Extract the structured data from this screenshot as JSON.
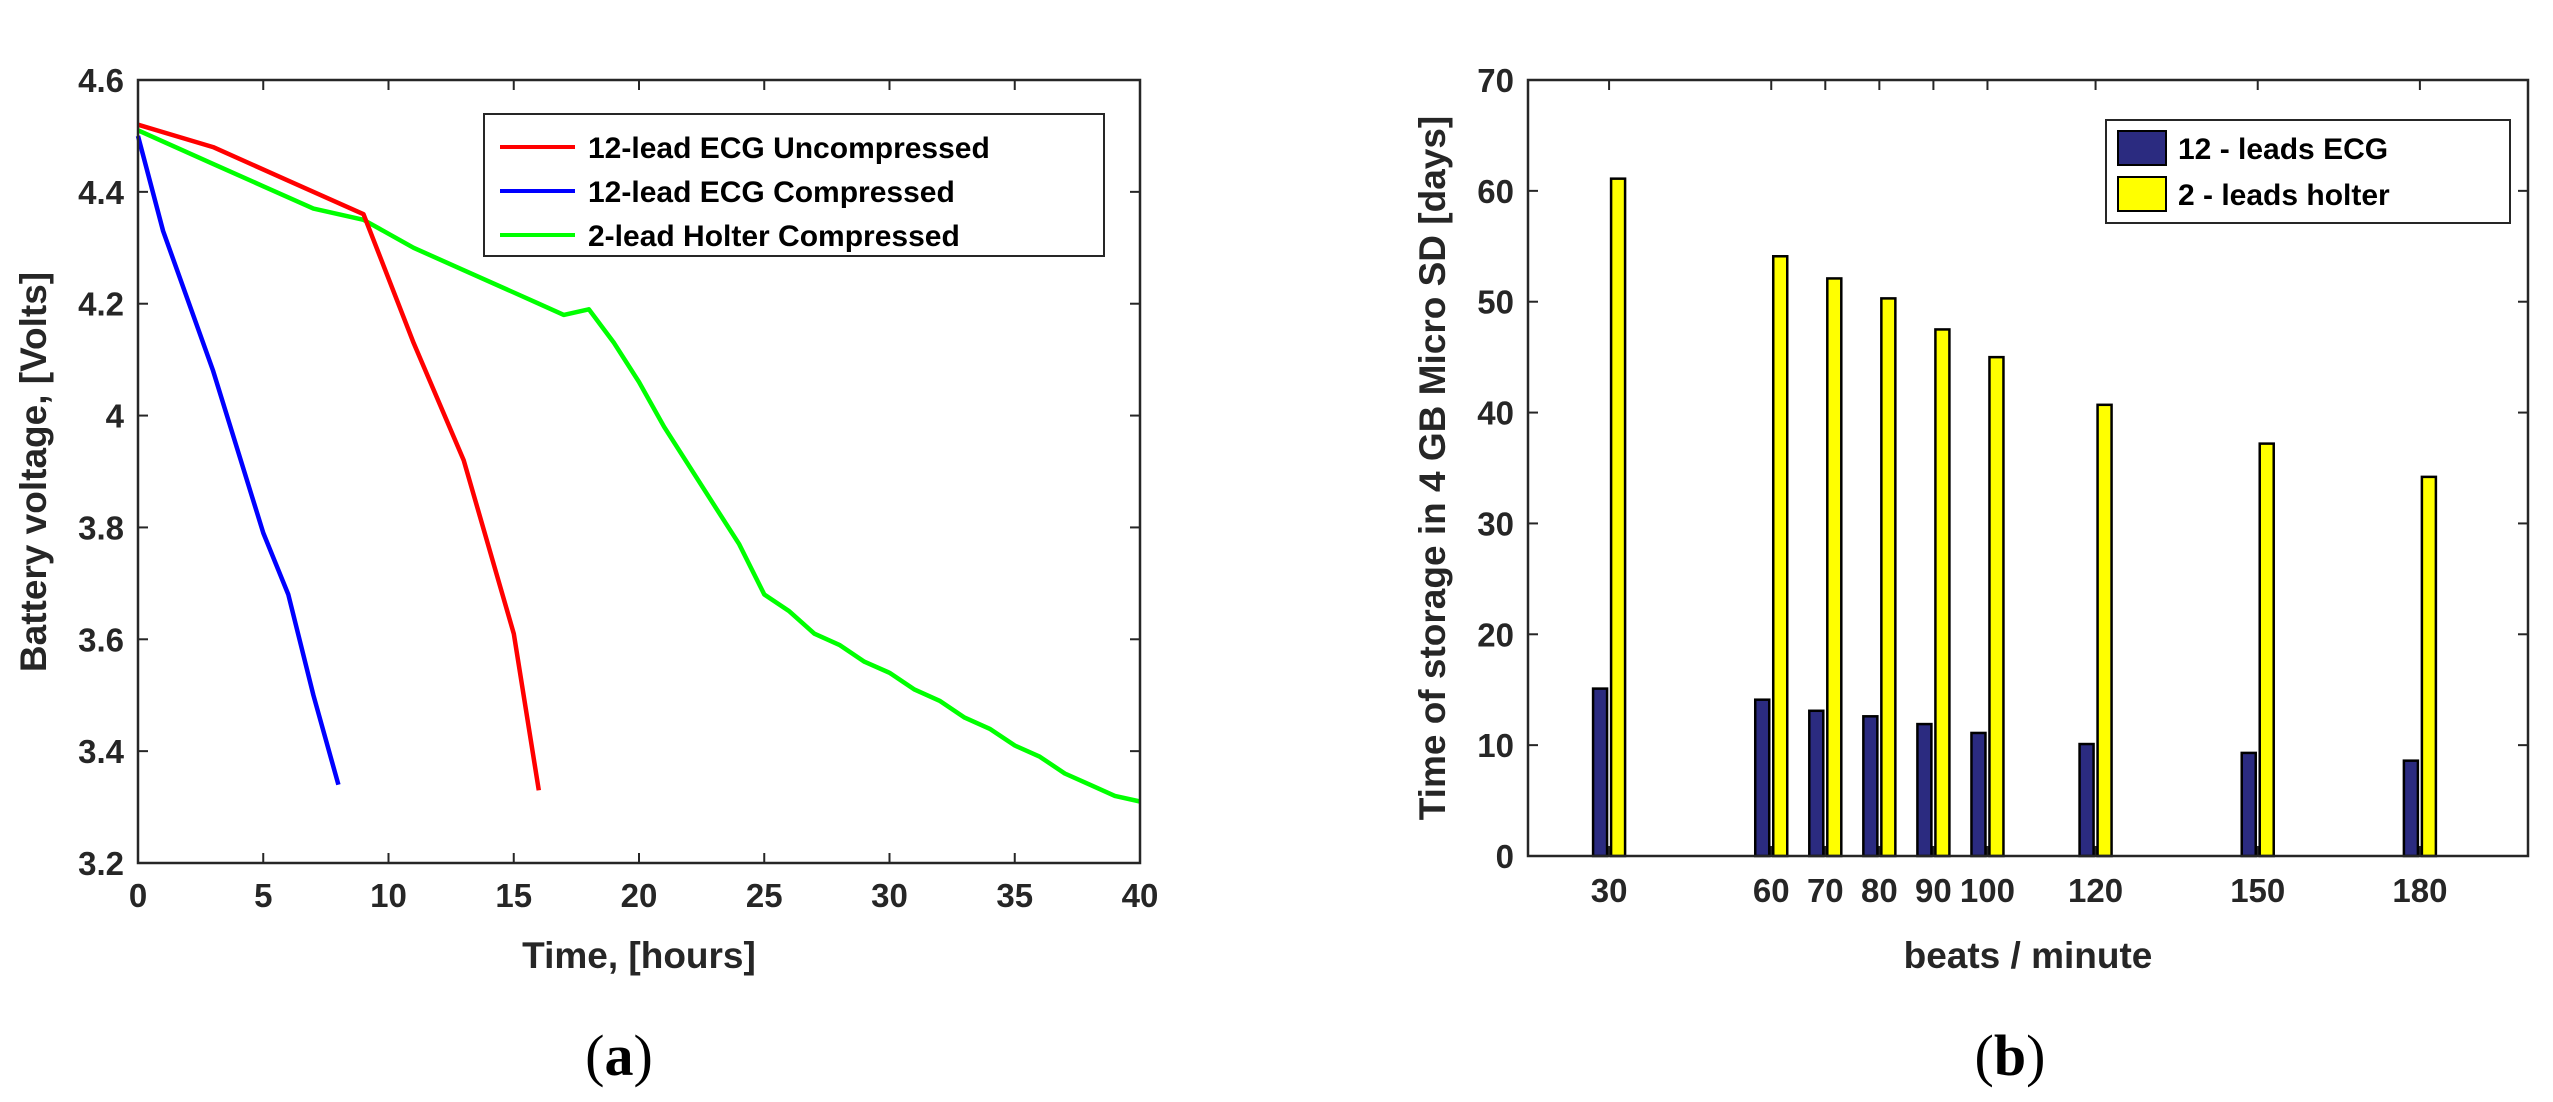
{
  "chart_data": [
    {
      "type": "line",
      "panel_label": "(a)",
      "xlabel": "Time, [hours]",
      "ylabel": "Battery voltage, [Volts]",
      "xlim": [
        0,
        40
      ],
      "ylim": [
        3.2,
        4.6
      ],
      "xticks": [
        "0",
        "5",
        "10",
        "15",
        "20",
        "25",
        "30",
        "35",
        "40"
      ],
      "yticks": [
        "3.2",
        "3.4",
        "3.6",
        "3.8",
        "4",
        "4.2",
        "4.4",
        "4.6"
      ],
      "legend_position": "top-right",
      "series": [
        {
          "name": "12-lead ECG Uncompressed",
          "color": "#ff0000",
          "x": [
            0,
            3,
            6,
            9,
            11,
            13,
            15,
            16
          ],
          "y": [
            4.52,
            4.48,
            4.42,
            4.36,
            4.13,
            3.92,
            3.61,
            3.33
          ]
        },
        {
          "name": "12-lead ECG Compressed",
          "color": "#0000ff",
          "x": [
            0,
            1,
            3,
            5,
            6,
            7,
            8
          ],
          "y": [
            4.5,
            4.33,
            4.08,
            3.79,
            3.68,
            3.5,
            3.34
          ]
        },
        {
          "name": "2-lead Holter Compressed",
          "color": "#00ff00",
          "x": [
            0,
            3,
            5,
            7,
            9,
            11,
            13,
            15,
            16,
            17,
            18,
            19,
            20,
            21,
            22,
            23,
            24,
            25,
            26,
            27,
            28,
            29,
            30,
            31,
            32,
            33,
            34,
            35,
            36,
            37,
            38,
            39,
            40
          ],
          "y": [
            4.51,
            4.45,
            4.41,
            4.37,
            4.35,
            4.3,
            4.26,
            4.22,
            4.2,
            4.18,
            4.19,
            4.13,
            4.06,
            3.98,
            3.91,
            3.84,
            3.77,
            3.68,
            3.65,
            3.61,
            3.59,
            3.56,
            3.54,
            3.51,
            3.49,
            3.46,
            3.44,
            3.41,
            3.39,
            3.36,
            3.34,
            3.32,
            3.31
          ]
        }
      ]
    },
    {
      "type": "bar",
      "panel_label": "(b)",
      "xlabel": "beats / minute",
      "ylabel": "Time of storage in 4 GB Micro SD [days]",
      "xlim": [
        15,
        200
      ],
      "ylim": [
        0,
        70
      ],
      "yticks": [
        "0",
        "10",
        "20",
        "30",
        "40",
        "50",
        "60",
        "70"
      ],
      "categories": [
        "30",
        "60",
        "70",
        "80",
        "90",
        "100",
        "120",
        "150",
        "180"
      ],
      "x": [
        30,
        60,
        70,
        80,
        90,
        100,
        120,
        150,
        180
      ],
      "legend_position": "top-right",
      "series": [
        {
          "name": "12 - leads ECG",
          "color": "#2b2b80",
          "values": [
            15.1,
            14.1,
            13.1,
            12.6,
            11.9,
            11.1,
            10.1,
            9.3,
            8.6
          ]
        },
        {
          "name": "2 - leads holter",
          "color": "#ffff00",
          "values": [
            61.1,
            54.1,
            52.1,
            50.3,
            47.5,
            45.0,
            40.7,
            37.2,
            34.2
          ]
        }
      ]
    }
  ]
}
